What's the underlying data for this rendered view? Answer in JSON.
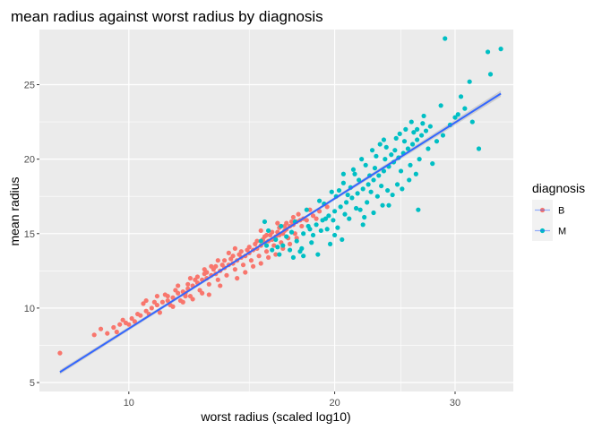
{
  "chart_data": {
    "type": "scatter",
    "title": "mean radius against worst radius by diagnosis",
    "xlabel": "worst radius (scaled log10)",
    "ylabel": "mean radius",
    "x_scale": "log10",
    "xlim": [
      7.4,
      36.5
    ],
    "ylim": [
      4.4,
      28.7
    ],
    "x_ticks": [
      10,
      20,
      30
    ],
    "x_tick_labels": [
      "10",
      "20",
      "30"
    ],
    "x_minor_ticks": [
      15,
      25
    ],
    "y_ticks": [
      5,
      10,
      15,
      20,
      25
    ],
    "y_tick_labels": [
      "5",
      "10",
      "15",
      "20",
      "25"
    ],
    "grid": true,
    "legend": {
      "title": "diagnosis",
      "position": "right",
      "entries": [
        {
          "label": "B",
          "color": "#F8766D"
        },
        {
          "label": "M",
          "color": "#00BFC4"
        }
      ]
    },
    "colors": {
      "panel_background": "#EBEBEB",
      "grid": "#FFFFFF",
      "trend_line": "#3366FF",
      "confidence_band": "#999999"
    },
    "trend_line": {
      "method": "lm",
      "x": [
        7.93,
        35.0
      ],
      "y": [
        5.7,
        24.4
      ]
    },
    "series": [
      {
        "name": "B",
        "color": "#F8766D",
        "points": [
          [
            7.93,
            6.98
          ],
          [
            9.1,
            8.6
          ],
          [
            8.9,
            8.2
          ],
          [
            9.3,
            8.3
          ],
          [
            9.5,
            8.7
          ],
          [
            9.7,
            8.9
          ],
          [
            9.9,
            9.0
          ],
          [
            10.1,
            9.3
          ],
          [
            10.3,
            9.6
          ],
          [
            9.6,
            8.4
          ],
          [
            10.0,
            8.9
          ],
          [
            10.4,
            9.5
          ],
          [
            10.6,
            9.8
          ],
          [
            10.8,
            10.0
          ],
          [
            11.0,
            10.2
          ],
          [
            11.2,
            10.4
          ],
          [
            11.4,
            10.5
          ],
          [
            11.6,
            10.7
          ],
          [
            11.8,
            11.0
          ],
          [
            12.0,
            11.1
          ],
          [
            12.2,
            11.3
          ],
          [
            12.4,
            11.5
          ],
          [
            12.6,
            11.7
          ],
          [
            12.8,
            11.9
          ],
          [
            13.0,
            12.0
          ],
          [
            13.2,
            12.2
          ],
          [
            13.4,
            12.3
          ],
          [
            13.6,
            12.5
          ],
          [
            13.8,
            12.7
          ],
          [
            14.0,
            12.9
          ],
          [
            14.2,
            13.0
          ],
          [
            14.4,
            13.2
          ],
          [
            14.6,
            13.4
          ],
          [
            14.8,
            13.5
          ],
          [
            15.0,
            13.7
          ],
          [
            15.2,
            13.9
          ],
          [
            15.4,
            14.0
          ],
          [
            15.6,
            14.2
          ],
          [
            15.8,
            14.4
          ],
          [
            16.0,
            14.5
          ],
          [
            16.2,
            14.6
          ],
          [
            16.4,
            14.8
          ],
          [
            16.6,
            14.9
          ],
          [
            16.8,
            15.0
          ],
          [
            17.0,
            15.3
          ],
          [
            17.2,
            15.5
          ],
          [
            17.4,
            15.6
          ],
          [
            17.6,
            15.8
          ],
          [
            17.8,
            15.9
          ],
          [
            18.0,
            16.0
          ],
          [
            10.5,
            10.3
          ],
          [
            10.9,
            10.4
          ],
          [
            11.3,
            10.9
          ],
          [
            11.7,
            11.2
          ],
          [
            12.1,
            11.0
          ],
          [
            12.5,
            11.9
          ],
          [
            12.9,
            12.3
          ],
          [
            13.3,
            12.6
          ],
          [
            13.7,
            12.9
          ],
          [
            14.1,
            13.3
          ],
          [
            14.5,
            13.6
          ],
          [
            14.9,
            13.9
          ],
          [
            15.3,
            14.3
          ],
          [
            15.7,
            14.6
          ],
          [
            16.1,
            14.9
          ],
          [
            16.5,
            15.1
          ],
          [
            16.9,
            15.5
          ],
          [
            17.3,
            15.8
          ],
          [
            11.1,
            9.7
          ],
          [
            11.5,
            10.2
          ],
          [
            11.9,
            10.5
          ],
          [
            12.3,
            10.8
          ],
          [
            12.7,
            11.2
          ],
          [
            13.1,
            11.6
          ],
          [
            13.5,
            11.9
          ],
          [
            13.9,
            12.2
          ],
          [
            14.3,
            12.6
          ],
          [
            14.7,
            12.9
          ],
          [
            15.1,
            13.2
          ],
          [
            15.5,
            13.5
          ],
          [
            15.9,
            13.8
          ],
          [
            16.3,
            14.2
          ],
          [
            16.7,
            14.4
          ],
          [
            17.1,
            14.7
          ],
          [
            17.5,
            15.0
          ],
          [
            12.2,
            11.6
          ],
          [
            12.6,
            12.1
          ],
          [
            13.0,
            12.4
          ],
          [
            13.4,
            12.8
          ],
          [
            13.8,
            13.2
          ],
          [
            14.2,
            13.5
          ],
          [
            14.6,
            13.8
          ],
          [
            15.0,
            14.1
          ],
          [
            15.4,
            14.5
          ],
          [
            15.8,
            14.8
          ],
          [
            16.2,
            15.1
          ],
          [
            16.6,
            15.4
          ],
          [
            17.0,
            15.7
          ],
          [
            17.4,
            16.1
          ],
          [
            10.2,
            9.1
          ],
          [
            10.7,
            9.6
          ],
          [
            11.6,
            10.1
          ],
          [
            12.0,
            10.4
          ],
          [
            12.4,
            10.6
          ],
          [
            12.8,
            11.0
          ],
          [
            13.6,
            11.5
          ],
          [
            14.4,
            12.0
          ],
          [
            14.8,
            12.4
          ],
          [
            15.2,
            12.8
          ],
          [
            15.6,
            13.0
          ],
          [
            16.0,
            13.4
          ],
          [
            16.4,
            13.6
          ],
          [
            16.8,
            14.0
          ],
          [
            17.2,
            14.3
          ],
          [
            17.6,
            14.7
          ],
          [
            18.2,
            15.9
          ],
          [
            18.6,
            16.2
          ],
          [
            19.0,
            16.5
          ],
          [
            19.5,
            16.8
          ],
          [
            14.0,
            13.7
          ],
          [
            14.3,
            14.0
          ],
          [
            13.5,
            13.2
          ],
          [
            12.9,
            12.6
          ],
          [
            12.3,
            12.0
          ],
          [
            11.8,
            11.5
          ],
          [
            15.6,
            15.2
          ],
          [
            16.5,
            15.7
          ],
          [
            17.7,
            16.3
          ],
          [
            18.4,
            16.6
          ],
          [
            13.2,
            12.8
          ],
          [
            12.1,
            10.8
          ],
          [
            13.1,
            10.9
          ],
          [
            11.0,
            10.8
          ],
          [
            10.6,
            10.5
          ],
          [
            9.8,
            9.2
          ],
          [
            11.4,
            10.8
          ],
          [
            15.9,
            14.9
          ],
          [
            16.9,
            15.2
          ],
          [
            17.9,
            15.5
          ],
          [
            18.8,
            16.0
          ]
        ]
      },
      {
        "name": "M",
        "color": "#00BFC4",
        "points": [
          [
            16.0,
            15.2
          ],
          [
            16.4,
            14.6
          ],
          [
            16.8,
            14.2
          ],
          [
            17.2,
            13.9
          ],
          [
            17.6,
            14.5
          ],
          [
            18.0,
            15.0
          ],
          [
            18.4,
            15.3
          ],
          [
            18.8,
            15.6
          ],
          [
            19.2,
            15.9
          ],
          [
            19.6,
            16.2
          ],
          [
            20.0,
            16.5
          ],
          [
            20.4,
            16.8
          ],
          [
            20.8,
            17.1
          ],
          [
            21.2,
            17.4
          ],
          [
            21.6,
            17.7
          ],
          [
            22.0,
            18.0
          ],
          [
            22.4,
            18.3
          ],
          [
            22.8,
            18.6
          ],
          [
            23.2,
            18.9
          ],
          [
            23.6,
            19.2
          ],
          [
            24.0,
            19.5
          ],
          [
            24.4,
            19.8
          ],
          [
            24.8,
            20.1
          ],
          [
            25.2,
            20.4
          ],
          [
            25.6,
            20.7
          ],
          [
            26.0,
            21.0
          ],
          [
            26.4,
            21.3
          ],
          [
            26.8,
            21.6
          ],
          [
            27.2,
            21.9
          ],
          [
            27.6,
            22.2
          ],
          [
            18.2,
            16.6
          ],
          [
            19.0,
            17.2
          ],
          [
            19.8,
            17.8
          ],
          [
            20.6,
            18.4
          ],
          [
            21.4,
            19.0
          ],
          [
            22.2,
            19.6
          ],
          [
            23.0,
            20.2
          ],
          [
            23.8,
            20.8
          ],
          [
            24.6,
            21.4
          ],
          [
            25.4,
            22.0
          ],
          [
            17.5,
            15.8
          ],
          [
            18.3,
            15.5
          ],
          [
            19.1,
            15.2
          ],
          [
            19.9,
            15.9
          ],
          [
            20.7,
            16.3
          ],
          [
            21.5,
            16.7
          ],
          [
            22.3,
            17.1
          ],
          [
            23.1,
            17.5
          ],
          [
            23.9,
            17.9
          ],
          [
            24.7,
            18.3
          ],
          [
            16.5,
            14.1
          ],
          [
            17.0,
            14.8
          ],
          [
            17.8,
            13.8
          ],
          [
            18.6,
            14.9
          ],
          [
            19.4,
            16.0
          ],
          [
            20.2,
            15.4
          ],
          [
            21.0,
            16.0
          ],
          [
            21.8,
            16.6
          ],
          [
            22.6,
            17.8
          ],
          [
            23.4,
            18.2
          ],
          [
            15.6,
            14.5
          ],
          [
            15.8,
            15.8
          ],
          [
            16.2,
            13.9
          ],
          [
            16.6,
            13.6
          ],
          [
            17.4,
            13.4
          ],
          [
            18.0,
            13.5
          ],
          [
            20.3,
            17.9
          ],
          [
            21.1,
            18.1
          ],
          [
            22.5,
            18.9
          ],
          [
            24.2,
            20.3
          ],
          [
            19.3,
            17.0
          ],
          [
            20.1,
            17.5
          ],
          [
            20.9,
            17.6
          ],
          [
            21.7,
            18.6
          ],
          [
            22.9,
            19.4
          ],
          [
            23.7,
            20.0
          ],
          [
            24.5,
            20.6
          ],
          [
            25.3,
            21.2
          ],
          [
            26.1,
            21.8
          ],
          [
            26.9,
            22.4
          ],
          [
            25.0,
            19.2
          ],
          [
            25.8,
            19.6
          ],
          [
            26.6,
            20.0
          ],
          [
            27.4,
            20.7
          ],
          [
            28.2,
            21.2
          ],
          [
            28.8,
            21.6
          ],
          [
            29.5,
            22.3
          ],
          [
            30.3,
            23.0
          ],
          [
            31.0,
            23.4
          ],
          [
            32.5,
            20.7
          ],
          [
            29.0,
            28.1
          ],
          [
            33.5,
            27.2
          ],
          [
            35.0,
            27.4
          ],
          [
            33.8,
            25.7
          ],
          [
            31.5,
            25.2
          ],
          [
            30.6,
            24.2
          ],
          [
            28.6,
            23.6
          ],
          [
            30.0,
            22.8
          ],
          [
            31.8,
            22.5
          ],
          [
            26.5,
            16.6
          ],
          [
            27.8,
            19.7
          ],
          [
            24.0,
            16.9
          ],
          [
            22.0,
            15.6
          ],
          [
            20.5,
            14.6
          ],
          [
            19.7,
            14.3
          ],
          [
            18.9,
            13.6
          ],
          [
            17.9,
            14.0
          ],
          [
            17.3,
            15.1
          ],
          [
            16.7,
            15.5
          ],
          [
            15.9,
            14.2
          ],
          [
            23.3,
            21.0
          ],
          [
            22.7,
            20.6
          ],
          [
            21.9,
            20.0
          ],
          [
            21.3,
            19.3
          ],
          [
            20.6,
            19.0
          ],
          [
            25.9,
            22.5
          ],
          [
            26.4,
            22.0
          ],
          [
            27.0,
            22.9
          ],
          [
            24.9,
            21.7
          ],
          [
            23.6,
            21.3
          ],
          [
            19.5,
            15.3
          ],
          [
            20.0,
            14.9
          ],
          [
            18.5,
            14.4
          ],
          [
            22.1,
            16.1
          ],
          [
            22.8,
            16.4
          ],
          [
            23.5,
            16.9
          ],
          [
            24.3,
            17.6
          ],
          [
            25.1,
            18.0
          ],
          [
            25.7,
            18.6
          ],
          [
            26.3,
            19.0
          ]
        ]
      }
    ]
  }
}
